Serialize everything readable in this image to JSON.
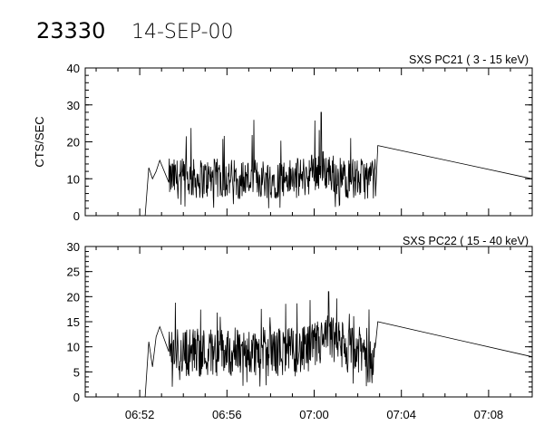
{
  "header": {
    "id": "23330",
    "date": "14-SEP-00"
  },
  "chart_data": [
    {
      "type": "line",
      "label": "SXS PC21  (  3 - 15 keV)",
      "ylabel": "CTS/SEC",
      "xlabel": "",
      "ylim": [
        0,
        40
      ],
      "yticks": [
        "0",
        "10",
        "20",
        "30",
        "40"
      ],
      "yminor_step": 2,
      "xticks": [
        "06:52",
        "06:56",
        "07:00",
        "07:04",
        "07:08"
      ],
      "grid": false,
      "series": [
        {
          "segments": [
            {
              "description": "pre-observation zero level",
              "x_range": [
                "06:49:30",
                "06:52:15"
              ],
              "y": 0
            },
            {
              "description": "initial rise",
              "points": [
                [
                  "06:52:15",
                  0
                ],
                [
                  "06:52:25",
                  13
                ],
                [
                  "06:52:35",
                  10
                ],
                [
                  "06:52:45",
                  12
                ],
                [
                  "06:52:55",
                  15
                ]
              ]
            },
            {
              "description": "data gap interpolation",
              "points": [
                [
                  "06:52:55",
                  15
                ],
                [
                  "06:53:20",
                  9
                ]
              ]
            },
            {
              "description": "noisy count rate",
              "x_range": [
                "06:53:20",
                "07:02:50"
              ],
              "mean": 10,
              "min": 2,
              "max": 28,
              "peak_at": "07:00:20"
            },
            {
              "description": "interpolation to end",
              "points": [
                [
                  "07:02:55",
                  19
                ],
                [
                  "07:10:00",
                  10
                ]
              ]
            }
          ]
        }
      ]
    },
    {
      "type": "line",
      "label": "SXS PC22  ( 15 - 40 keV)",
      "ylabel": "",
      "xlabel": "",
      "ylim": [
        0,
        30
      ],
      "yticks": [
        "0",
        "5",
        "10",
        "15",
        "20",
        "25",
        "30"
      ],
      "yminor_step": 1,
      "xticks": [
        "06:52",
        "06:56",
        "07:00",
        "07:04",
        "07:08"
      ],
      "grid": false,
      "series": [
        {
          "segments": [
            {
              "description": "pre-observation zero level",
              "x_range": [
                "06:49:30",
                "06:52:15"
              ],
              "y": 0
            },
            {
              "description": "initial rise",
              "points": [
                [
                  "06:52:15",
                  0
                ],
                [
                  "06:52:25",
                  11
                ],
                [
                  "06:52:35",
                  6
                ],
                [
                  "06:52:45",
                  12
                ],
                [
                  "06:52:55",
                  14
                ]
              ]
            },
            {
              "description": "data gap interpolation",
              "points": [
                [
                  "06:52:55",
                  14
                ],
                [
                  "06:53:20",
                  9
                ]
              ]
            },
            {
              "description": "noisy count rate",
              "x_range": [
                "06:53:20",
                "07:02:50"
              ],
              "mean": 9,
              "min": 2,
              "max": 21,
              "peak_at": "07:00:40"
            },
            {
              "description": "interpolation to end",
              "points": [
                [
                  "07:02:55",
                  15
                ],
                [
                  "07:10:00",
                  8
                ]
              ]
            }
          ]
        }
      ]
    }
  ]
}
